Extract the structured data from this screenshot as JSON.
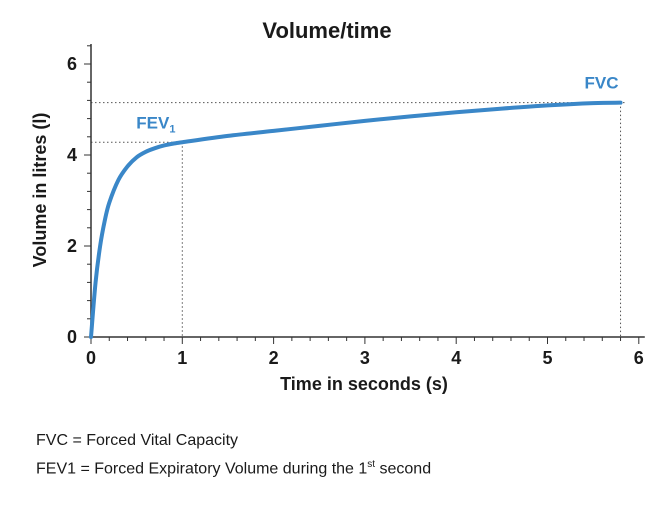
{
  "chart_data": {
    "type": "line",
    "title": "Volume/time",
    "xlabel": "Time in seconds (s)",
    "ylabel": "Volume in litres (l)",
    "xlim": [
      0,
      6
    ],
    "ylim": [
      0,
      6
    ],
    "x_ticks": [
      0,
      1,
      2,
      3,
      4,
      5,
      6
    ],
    "y_ticks": [
      0,
      2,
      4,
      6
    ],
    "line_color": "#3a87c8",
    "grid": false,
    "series": [
      {
        "x": [
          0,
          0.05,
          0.1,
          0.15,
          0.2,
          0.3,
          0.4,
          0.5,
          0.6,
          0.7,
          0.8,
          0.9,
          1.0,
          1.5,
          2.0,
          2.5,
          3.0,
          3.5,
          4.0,
          4.5,
          5.0,
          5.5,
          5.8
        ],
        "y": [
          0,
          1.2,
          2.0,
          2.55,
          2.95,
          3.45,
          3.75,
          3.95,
          4.07,
          4.15,
          4.21,
          4.25,
          4.28,
          4.42,
          4.53,
          4.64,
          4.75,
          4.85,
          4.94,
          5.02,
          5.09,
          5.14,
          5.15
        ]
      }
    ],
    "annotations": {
      "fev1": {
        "label": "FEV",
        "subscript": "1",
        "x": 1.0,
        "y": 4.28,
        "color": "#3a87c8"
      },
      "fvc": {
        "label": "FVC",
        "x": 5.8,
        "y": 5.15,
        "color": "#3a87c8"
      }
    }
  },
  "footnotes": {
    "fvc_line": "FVC = Forced Vital Capacity",
    "fev1_prefix": "FEV1 = Forced Expiratory Volume during the 1",
    "fev1_sup": "st",
    "fev1_suffix": " second"
  }
}
